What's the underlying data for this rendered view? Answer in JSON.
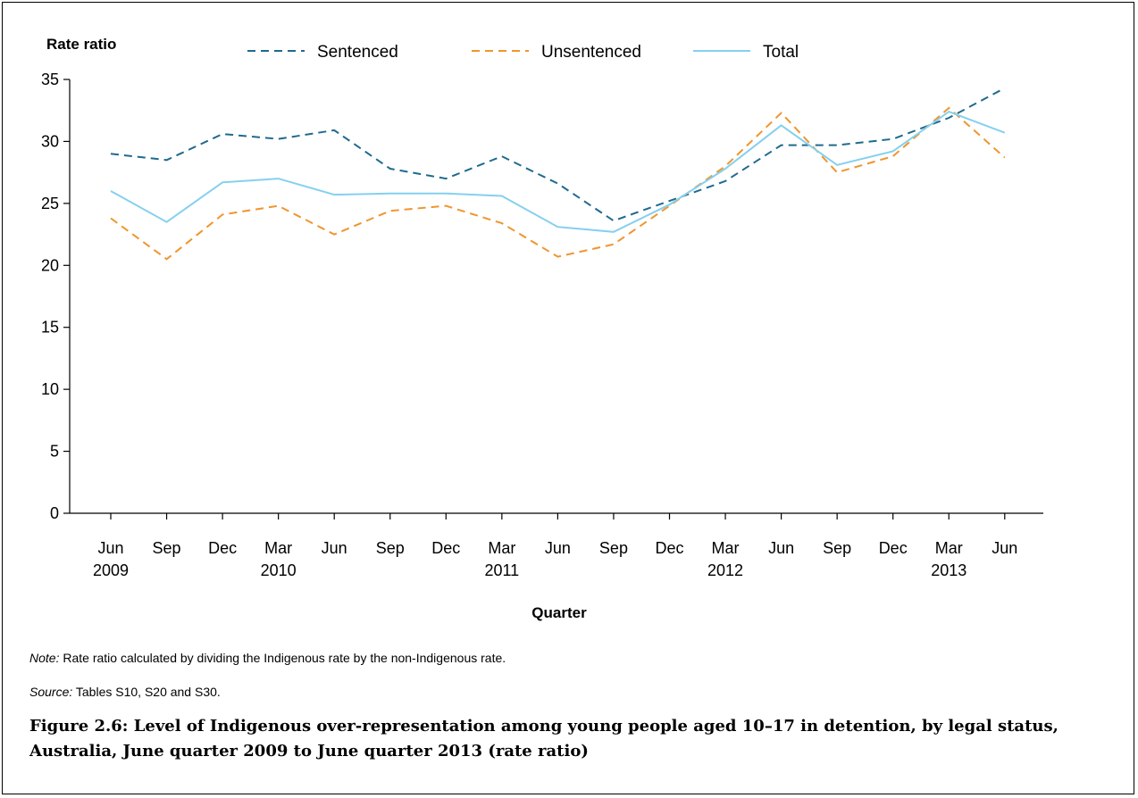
{
  "chart_data": {
    "type": "line",
    "title": "",
    "ylabel": "Rate ratio",
    "xlabel": "Quarter",
    "ylim": [
      0,
      35
    ],
    "yticks": [
      0,
      5,
      10,
      15,
      20,
      25,
      30,
      35
    ],
    "categories": [
      "Jun 2009",
      "Sep 2009",
      "Dec 2009",
      "Mar 2010",
      "Jun 2010",
      "Sep 2010",
      "Dec 2010",
      "Mar 2011",
      "Jun 2011",
      "Sep 2011",
      "Dec 2011",
      "Mar 2012",
      "Jun 2012",
      "Sep 2012",
      "Dec 2012",
      "Mar 2013",
      "Jun 2013"
    ],
    "tick_labels": [
      {
        "month": "Jun",
        "year": "2009"
      },
      {
        "month": "Sep",
        "year": ""
      },
      {
        "month": "Dec",
        "year": ""
      },
      {
        "month": "Mar",
        "year": "2010"
      },
      {
        "month": "Jun",
        "year": ""
      },
      {
        "month": "Sep",
        "year": ""
      },
      {
        "month": "Dec",
        "year": ""
      },
      {
        "month": "Mar",
        "year": "2011"
      },
      {
        "month": "Jun",
        "year": ""
      },
      {
        "month": "Sep",
        "year": ""
      },
      {
        "month": "Dec",
        "year": ""
      },
      {
        "month": "Mar",
        "year": "2012"
      },
      {
        "month": "Jun",
        "year": ""
      },
      {
        "month": "Sep",
        "year": ""
      },
      {
        "month": "Dec",
        "year": ""
      },
      {
        "month": "Mar",
        "year": "2013"
      },
      {
        "month": "Jun",
        "year": ""
      }
    ],
    "series": [
      {
        "name": "Sentenced",
        "color": "#1f6a8e",
        "dash": "dashed",
        "values": [
          29.0,
          28.5,
          30.6,
          30.2,
          30.9,
          27.8,
          27.0,
          28.8,
          26.6,
          23.6,
          25.2,
          26.8,
          29.7,
          29.7,
          30.2,
          31.9,
          34.3
        ]
      },
      {
        "name": "Unsentenced",
        "color": "#f0952d",
        "dash": "dashed",
        "values": [
          23.8,
          20.5,
          24.1,
          24.8,
          22.5,
          24.4,
          24.8,
          23.4,
          20.7,
          21.7,
          24.8,
          28.0,
          32.3,
          27.5,
          28.8,
          32.7,
          28.7
        ]
      },
      {
        "name": "Total",
        "color": "#85d0ef",
        "dash": "solid",
        "values": [
          26.0,
          23.5,
          26.7,
          27.0,
          25.7,
          25.8,
          25.8,
          25.6,
          23.1,
          22.7,
          24.9,
          27.8,
          31.3,
          28.1,
          29.2,
          32.4,
          30.7
        ]
      }
    ],
    "legend": "top",
    "grid": false
  },
  "note": {
    "label": "Note:",
    "text": "Rate ratio calculated by dividing the Indigenous rate by the non-Indigenous rate."
  },
  "source": {
    "label": "Source:",
    "text": "Tables S10, S20 and S30."
  },
  "caption": "Figure 2.6: Level of Indigenous over-representation among young people aged 10–17 in detention, by legal status, Australia, June quarter 2009 to June quarter 2013 (rate ratio)"
}
